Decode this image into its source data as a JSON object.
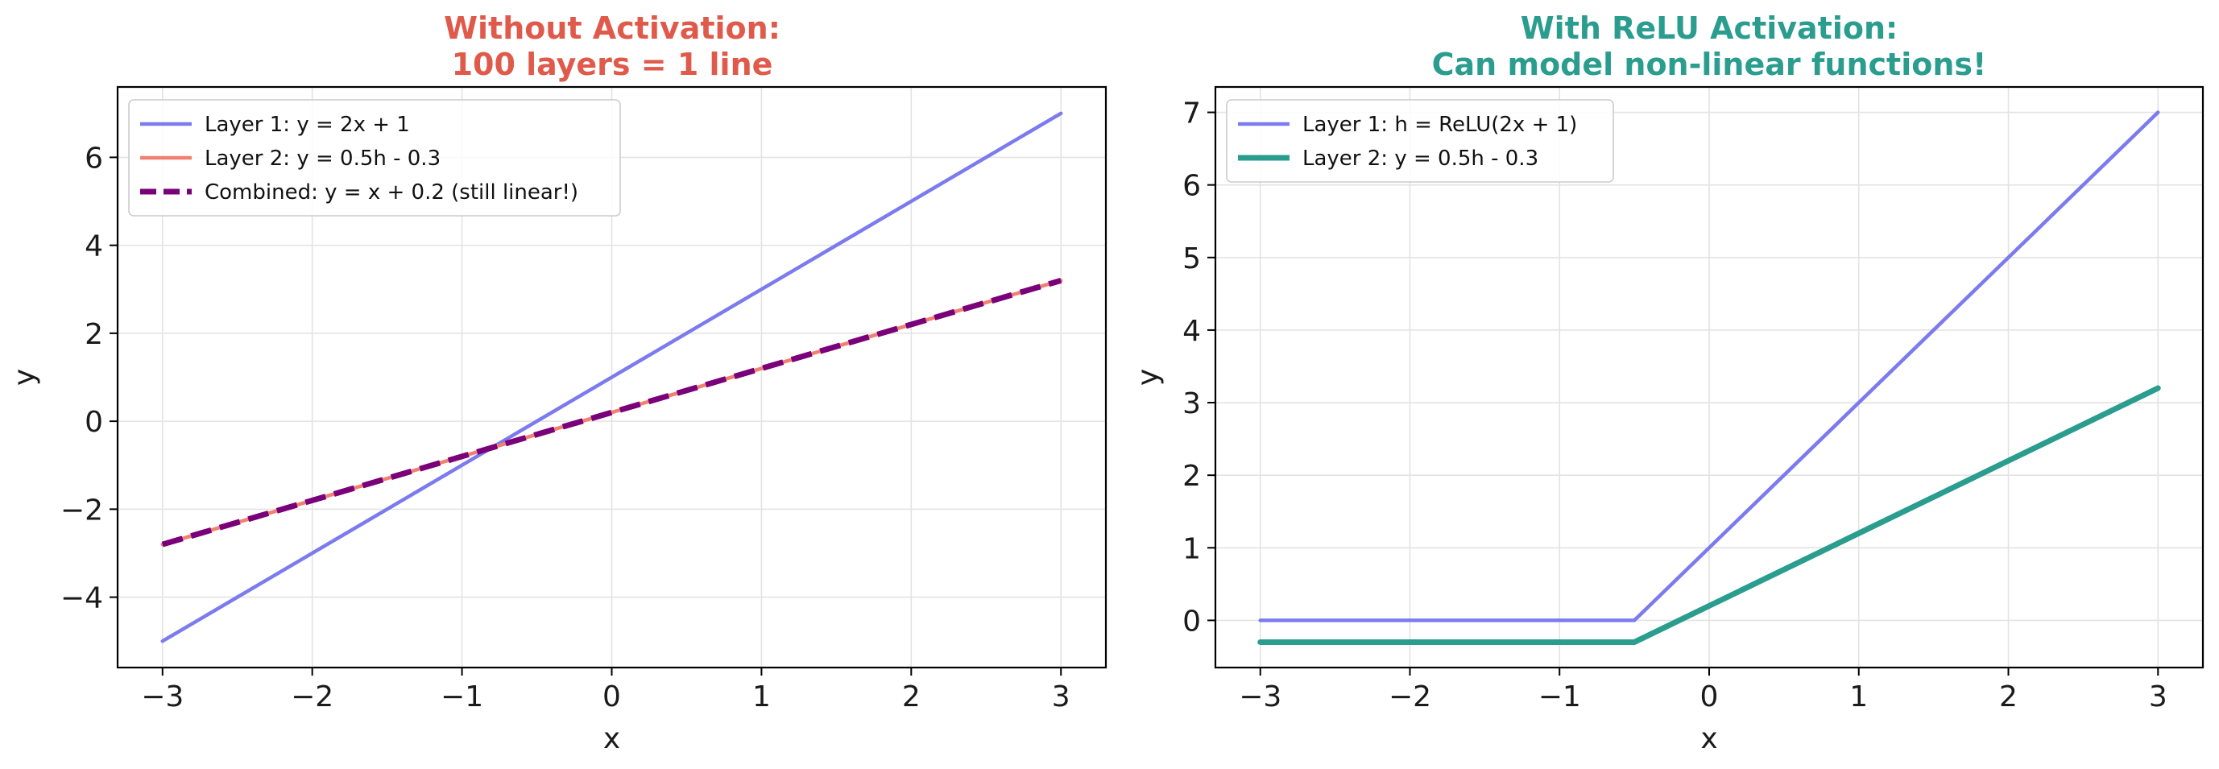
{
  "charts": [
    {
      "title_lines": [
        "Without Activation:",
        "100 layers = 1 line"
      ],
      "title_color": "#e05a4b",
      "xlabel": "x",
      "ylabel": "y",
      "chart_data": {
        "type": "line",
        "xlim": [
          -3.3,
          3.3
        ],
        "ylim": [
          -5.6,
          7.6
        ],
        "xticks": [
          -3,
          -2,
          -1,
          0,
          1,
          2,
          3
        ],
        "xtick_labels": [
          "−3",
          "−2",
          "−1",
          "0",
          "1",
          "2",
          "3"
        ],
        "yticks": [
          -4,
          -2,
          0,
          2,
          4,
          6
        ],
        "ytick_labels": [
          "−4",
          "−2",
          "0",
          "2",
          "4",
          "6"
        ],
        "grid": true,
        "legend_position": "top-left",
        "series": [
          {
            "name": "Layer 1: y = 2x + 1",
            "color": "#7b7bef",
            "style": "solid",
            "weight": "normal",
            "x": [
              -3,
              3
            ],
            "y": [
              -5,
              7
            ]
          },
          {
            "name": "Layer 2: y = 0.5h - 0.3",
            "color": "#f08070",
            "style": "solid",
            "weight": "normal",
            "x": [
              -3,
              3
            ],
            "y": [
              -2.8,
              3.2
            ]
          },
          {
            "name": "Combined: y = x + 0.2 (still linear!)",
            "color": "#7a007a",
            "style": "dashed",
            "weight": "bold",
            "x": [
              -3,
              3
            ],
            "y": [
              -2.8,
              3.2
            ]
          }
        ]
      }
    },
    {
      "title_lines": [
        "With ReLU Activation:",
        "Can model non-linear functions!"
      ],
      "title_color": "#2a9d8f",
      "xlabel": "x",
      "ylabel": "y",
      "chart_data": {
        "type": "line",
        "xlim": [
          -3.3,
          3.3
        ],
        "ylim": [
          -0.65,
          7.35
        ],
        "xticks": [
          -3,
          -2,
          -1,
          0,
          1,
          2,
          3
        ],
        "xtick_labels": [
          "−3",
          "−2",
          "−1",
          "0",
          "1",
          "2",
          "3"
        ],
        "yticks": [
          0,
          1,
          2,
          3,
          4,
          5,
          6,
          7
        ],
        "ytick_labels": [
          "0",
          "1",
          "2",
          "3",
          "4",
          "5",
          "6",
          "7"
        ],
        "grid": true,
        "legend_position": "top-left",
        "series": [
          {
            "name": "Layer 1: h = ReLU(2x + 1)",
            "color": "#7b7bef",
            "style": "solid",
            "weight": "normal",
            "x": [
              -3,
              -0.5,
              3
            ],
            "y": [
              0,
              0,
              7
            ]
          },
          {
            "name": "Layer 2: y = 0.5h - 0.3",
            "color": "#2a9d8f",
            "style": "solid",
            "weight": "bold",
            "x": [
              -3,
              -0.5,
              3
            ],
            "y": [
              -0.3,
              -0.3,
              3.2
            ]
          }
        ]
      }
    }
  ]
}
